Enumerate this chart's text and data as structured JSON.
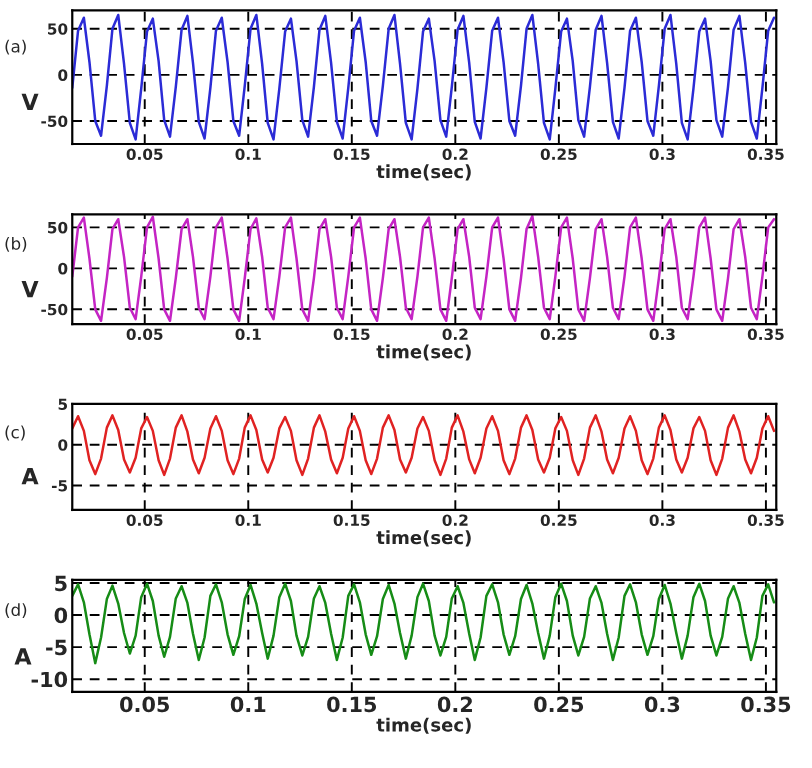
{
  "chart_data": [
    {
      "type": "line",
      "annotations": [
        "(a)"
      ],
      "xlabel": "time(sec)",
      "ylabel": "V",
      "xlim": [
        0.015,
        0.355
      ],
      "ylim": [
        -75,
        70
      ],
      "xticks": [
        0.05,
        0.1,
        0.15,
        0.2,
        0.25,
        0.3,
        0.35
      ],
      "yticks": [
        -50,
        0,
        50
      ],
      "grid": true,
      "x": [
        0.015,
        0.0178,
        0.0206,
        0.0233,
        0.0261,
        0.0289,
        0.0317,
        0.0344,
        0.0372,
        0.04,
        0.0428,
        0.0456,
        0.0483,
        0.0511,
        0.0539,
        0.0567,
        0.0594,
        0.0622,
        0.065,
        0.0678,
        0.0706,
        0.0733,
        0.0761,
        0.0789,
        0.0817,
        0.0844,
        0.0872,
        0.09,
        0.0928,
        0.0956,
        0.0983,
        0.1011,
        0.1039,
        0.1067,
        0.1094,
        0.1122,
        0.115,
        0.1178,
        0.1206,
        0.1233,
        0.1261,
        0.1289,
        0.1317,
        0.1344,
        0.1372,
        0.14,
        0.1428,
        0.1456,
        0.1483,
        0.1511,
        0.1539,
        0.1567,
        0.1594,
        0.1622,
        0.165,
        0.1678,
        0.1706,
        0.1733,
        0.1761,
        0.1789,
        0.1817,
        0.1844,
        0.1872,
        0.19,
        0.1928,
        0.1956,
        0.1983,
        0.2011,
        0.2039,
        0.2067,
        0.2094,
        0.2122,
        0.215,
        0.2178,
        0.2206,
        0.2233,
        0.2261,
        0.2289,
        0.2317,
        0.2344,
        0.2372,
        0.24,
        0.2428,
        0.2456,
        0.2483,
        0.2511,
        0.2539,
        0.2567,
        0.2594,
        0.2622,
        0.265,
        0.2678,
        0.2706,
        0.2733,
        0.2761,
        0.2789,
        0.2817,
        0.2844,
        0.2872,
        0.29,
        0.2928,
        0.2956,
        0.2983,
        0.3011,
        0.3039,
        0.3067,
        0.3094,
        0.3122,
        0.315,
        0.3178,
        0.3206,
        0.3233,
        0.3261,
        0.3289,
        0.3317,
        0.3344,
        0.3372,
        0.34,
        0.3428,
        0.3456,
        0.3483,
        0.3511,
        0.3539
      ],
      "series": [
        {
          "color": "#2b2bd6",
          "values": [
            -14,
            48,
            62,
            14,
            -50,
            -66,
            -12,
            50,
            65,
            12,
            -52,
            -70,
            -15,
            47,
            61,
            15,
            -49,
            -67,
            -13,
            49,
            64,
            13,
            -51,
            -69,
            -14,
            48,
            62,
            14,
            -50,
            -66,
            -12,
            50,
            65,
            12,
            -52,
            -70,
            -15,
            47,
            61,
            15,
            -49,
            -67,
            -13,
            49,
            64,
            13,
            -51,
            -69,
            -14,
            48,
            62,
            14,
            -50,
            -66,
            -12,
            50,
            65,
            12,
            -52,
            -70,
            -15,
            47,
            61,
            15,
            -49,
            -67,
            -13,
            49,
            64,
            13,
            -51,
            -69,
            -14,
            48,
            62,
            14,
            -50,
            -66,
            -12,
            50,
            65,
            12,
            -52,
            -70,
            -15,
            47,
            61,
            15,
            -49,
            -67,
            -13,
            49,
            64,
            13,
            -51,
            -69,
            -14,
            48,
            62,
            14,
            -50,
            -66,
            -12,
            50,
            65,
            12,
            -52,
            -70,
            -15,
            47,
            61,
            15,
            -49,
            -67,
            -13,
            49,
            64,
            13,
            -51,
            -69,
            -14,
            48,
            62
          ]
        }
      ]
    },
    {
      "type": "line",
      "annotations": [
        "(b)"
      ],
      "xlabel": "time(sec)",
      "ylabel": "V",
      "xlim": [
        0.015,
        0.355
      ],
      "ylim": [
        -68,
        66
      ],
      "xticks": [
        0.05,
        0.1,
        0.15,
        0.2,
        0.25,
        0.3,
        0.35
      ],
      "yticks": [
        -50,
        0,
        50
      ],
      "grid": true,
      "x": [
        0.015,
        0.0178,
        0.0206,
        0.0233,
        0.0261,
        0.0289,
        0.0317,
        0.0344,
        0.0372,
        0.04,
        0.0428,
        0.0456,
        0.0483,
        0.0511,
        0.0539,
        0.0567,
        0.0594,
        0.0622,
        0.065,
        0.0678,
        0.0706,
        0.0733,
        0.0761,
        0.0789,
        0.0817,
        0.0844,
        0.0872,
        0.09,
        0.0928,
        0.0956,
        0.0983,
        0.1011,
        0.1039,
        0.1067,
        0.1094,
        0.1122,
        0.115,
        0.1178,
        0.1206,
        0.1233,
        0.1261,
        0.1289,
        0.1317,
        0.1344,
        0.1372,
        0.14,
        0.1428,
        0.1456,
        0.1483,
        0.1511,
        0.1539,
        0.1567,
        0.1594,
        0.1622,
        0.165,
        0.1678,
        0.1706,
        0.1733,
        0.1761,
        0.1789,
        0.1817,
        0.1844,
        0.1872,
        0.19,
        0.1928,
        0.1956,
        0.1983,
        0.2011,
        0.2039,
        0.2067,
        0.2094,
        0.2122,
        0.215,
        0.2178,
        0.2206,
        0.2233,
        0.2261,
        0.2289,
        0.2317,
        0.2344,
        0.2372,
        0.24,
        0.2428,
        0.2456,
        0.2483,
        0.2511,
        0.2539,
        0.2567,
        0.2594,
        0.2622,
        0.265,
        0.2678,
        0.2706,
        0.2733,
        0.2761,
        0.2789,
        0.2817,
        0.2844,
        0.2872,
        0.29,
        0.2928,
        0.2956,
        0.2983,
        0.3011,
        0.3039,
        0.3067,
        0.3094,
        0.3122,
        0.315,
        0.3178,
        0.3206,
        0.3233,
        0.3261,
        0.3289,
        0.3317,
        0.3344,
        0.3372,
        0.34,
        0.3428,
        0.3456,
        0.3483,
        0.3511,
        0.3539
      ],
      "series": [
        {
          "color": "#c424c4",
          "values": [
            -10,
            50,
            62,
            12,
            -50,
            -64,
            -12,
            48,
            60,
            14,
            -48,
            -62,
            -10,
            50,
            63,
            12,
            -50,
            -64,
            -12,
            48,
            60,
            14,
            -48,
            -62,
            -10,
            50,
            62,
            12,
            -50,
            -64,
            -12,
            48,
            61,
            14,
            -48,
            -62,
            -10,
            50,
            62,
            12,
            -50,
            -64,
            -12,
            48,
            60,
            14,
            -48,
            -62,
            -10,
            50,
            62,
            12,
            -50,
            -64,
            -12,
            48,
            60,
            14,
            -48,
            -62,
            -10,
            50,
            62,
            12,
            -50,
            -64,
            -12,
            48,
            60,
            14,
            -48,
            -62,
            -10,
            50,
            62,
            12,
            -50,
            -64,
            -12,
            48,
            64,
            14,
            -48,
            -62,
            -10,
            50,
            62,
            12,
            -50,
            -64,
            -12,
            48,
            60,
            14,
            -48,
            -62,
            -10,
            50,
            62,
            12,
            -50,
            -64,
            -12,
            48,
            60,
            14,
            -48,
            -62,
            -10,
            50,
            62,
            12,
            -50,
            -64,
            -12,
            48,
            60,
            14,
            -48,
            -62,
            -10,
            50,
            60
          ]
        }
      ]
    },
    {
      "type": "line",
      "annotations": [
        "(c)"
      ],
      "xlabel": "time(sec)",
      "ylabel": "A",
      "xlim": [
        0.015,
        0.355
      ],
      "ylim": [
        -8,
        5
      ],
      "xticks": [
        0.05,
        0.1,
        0.15,
        0.2,
        0.25,
        0.3,
        0.35
      ],
      "yticks": [
        -5,
        0,
        5
      ],
      "grid": true,
      "x": [
        0.015,
        0.0178,
        0.0206,
        0.0233,
        0.0261,
        0.0289,
        0.0317,
        0.0344,
        0.0372,
        0.04,
        0.0428,
        0.0456,
        0.0483,
        0.0511,
        0.0539,
        0.0567,
        0.0594,
        0.0622,
        0.065,
        0.0678,
        0.0706,
        0.0733,
        0.0761,
        0.0789,
        0.0817,
        0.0844,
        0.0872,
        0.09,
        0.0928,
        0.0956,
        0.0983,
        0.1011,
        0.1039,
        0.1067,
        0.1094,
        0.1122,
        0.115,
        0.1178,
        0.1206,
        0.1233,
        0.1261,
        0.1289,
        0.1317,
        0.1344,
        0.1372,
        0.14,
        0.1428,
        0.1456,
        0.1483,
        0.1511,
        0.1539,
        0.1567,
        0.1594,
        0.1622,
        0.165,
        0.1678,
        0.1706,
        0.1733,
        0.1761,
        0.1789,
        0.1817,
        0.1844,
        0.1872,
        0.19,
        0.1928,
        0.1956,
        0.1983,
        0.2011,
        0.2039,
        0.2067,
        0.2094,
        0.2122,
        0.215,
        0.2178,
        0.2206,
        0.2233,
        0.2261,
        0.2289,
        0.2317,
        0.2344,
        0.2372,
        0.24,
        0.2428,
        0.2456,
        0.2483,
        0.2511,
        0.2539,
        0.2567,
        0.2594,
        0.2622,
        0.265,
        0.2678,
        0.2706,
        0.2733,
        0.2761,
        0.2789,
        0.2817,
        0.2844,
        0.2872,
        0.29,
        0.2928,
        0.2956,
        0.2983,
        0.3011,
        0.3039,
        0.3067,
        0.3094,
        0.3122,
        0.315,
        0.3178,
        0.3206,
        0.3233,
        0.3261,
        0.3289,
        0.3317,
        0.3344,
        0.3372,
        0.34,
        0.3428,
        0.3456,
        0.3483,
        0.3511,
        0.3539
      ],
      "series": [
        {
          "color": "#e02222",
          "values": [
            2,
            3.5,
            1.7,
            -1.9,
            -3.6,
            -1.7,
            2.1,
            3.6,
            1.8,
            -1.8,
            -3.4,
            -1.6,
            2,
            3.4,
            1.7,
            -1.9,
            -3.7,
            -1.7,
            2.1,
            3.6,
            1.6,
            -1.8,
            -3.5,
            -1.6,
            2,
            3.5,
            1.7,
            -1.9,
            -3.6,
            -1.7,
            2.1,
            3.6,
            1.8,
            -1.8,
            -3.4,
            -1.6,
            2,
            3.4,
            1.7,
            -1.9,
            -3.7,
            -1.7,
            2.1,
            3.6,
            1.6,
            -1.8,
            -3.5,
            -1.6,
            2,
            3.5,
            1.7,
            -1.9,
            -3.6,
            -1.7,
            2.1,
            3.6,
            1.8,
            -1.8,
            -3.4,
            -1.6,
            2,
            3.4,
            1.7,
            -1.9,
            -3.7,
            -1.7,
            2.1,
            3.6,
            1.6,
            -1.8,
            -3.5,
            -1.6,
            2,
            3.5,
            1.7,
            -1.9,
            -3.6,
            -1.7,
            2.1,
            3.6,
            1.8,
            -1.8,
            -3.4,
            -1.6,
            2,
            3.4,
            1.7,
            -1.9,
            -3.7,
            -1.7,
            2.1,
            3.6,
            1.6,
            -1.8,
            -3.5,
            -1.6,
            2,
            3.5,
            1.7,
            -1.9,
            -3.6,
            -1.7,
            2.1,
            3.6,
            1.8,
            -1.8,
            -3.4,
            -1.6,
            2,
            3.4,
            1.7,
            -1.9,
            -3.7,
            -1.7,
            2.1,
            3.6,
            1.6,
            -1.8,
            -3.5,
            -1.6,
            2,
            3.5,
            1.7
          ]
        }
      ]
    },
    {
      "type": "line",
      "annotations": [
        "(d)"
      ],
      "xlabel": "time(sec)",
      "ylabel": "A",
      "xlim": [
        0.015,
        0.355
      ],
      "ylim": [
        -12,
        5.5
      ],
      "xticks": [
        0.05,
        0.1,
        0.15,
        0.2,
        0.25,
        0.3,
        0.35
      ],
      "yticks": [
        -10,
        -5,
        0,
        5
      ],
      "grid": true,
      "x": [
        0.015,
        0.0178,
        0.0206,
        0.0233,
        0.0261,
        0.0289,
        0.0317,
        0.0344,
        0.0372,
        0.04,
        0.0428,
        0.0456,
        0.0483,
        0.0511,
        0.0539,
        0.0567,
        0.0594,
        0.0622,
        0.065,
        0.0678,
        0.0706,
        0.0733,
        0.0761,
        0.0789,
        0.0817,
        0.0844,
        0.0872,
        0.09,
        0.0928,
        0.0956,
        0.0983,
        0.1011,
        0.1039,
        0.1067,
        0.1094,
        0.1122,
        0.115,
        0.1178,
        0.1206,
        0.1233,
        0.1261,
        0.1289,
        0.1317,
        0.1344,
        0.1372,
        0.14,
        0.1428,
        0.1456,
        0.1483,
        0.1511,
        0.1539,
        0.1567,
        0.1594,
        0.1622,
        0.165,
        0.1678,
        0.1706,
        0.1733,
        0.1761,
        0.1789,
        0.1817,
        0.1844,
        0.1872,
        0.19,
        0.1928,
        0.1956,
        0.1983,
        0.2011,
        0.2039,
        0.2067,
        0.2094,
        0.2122,
        0.215,
        0.2178,
        0.2206,
        0.2233,
        0.2261,
        0.2289,
        0.2317,
        0.2344,
        0.2372,
        0.24,
        0.2428,
        0.2456,
        0.2483,
        0.2511,
        0.2539,
        0.2567,
        0.2594,
        0.2622,
        0.265,
        0.2678,
        0.2706,
        0.2733,
        0.2761,
        0.2789,
        0.2817,
        0.2844,
        0.2872,
        0.29,
        0.2928,
        0.2956,
        0.2983,
        0.3011,
        0.3039,
        0.3067,
        0.3094,
        0.3122,
        0.315,
        0.3178,
        0.3206,
        0.3233,
        0.3261,
        0.3289,
        0.3317,
        0.3344,
        0.3372,
        0.34,
        0.3428,
        0.3456,
        0.3483,
        0.3511,
        0.3539
      ],
      "series": [
        {
          "color": "#168c16",
          "values": [
            3,
            4.8,
            2,
            -3,
            -7.5,
            -3.5,
            2.5,
            4.6,
            1.8,
            -2.8,
            -6,
            -3.2,
            2.8,
            4.9,
            2.2,
            -3.2,
            -6.5,
            -3.4,
            2.6,
            4.5,
            1.9,
            -2.9,
            -7,
            -3.5,
            3,
            4.8,
            2,
            -3,
            -6.2,
            -3.3,
            2.5,
            4.7,
            1.8,
            -2.8,
            -6.8,
            -3.2,
            2.8,
            4.9,
            2.2,
            -3.2,
            -6.3,
            -3.4,
            2.6,
            4.5,
            1.9,
            -2.9,
            -7,
            -3.5,
            3,
            4.8,
            2,
            -3,
            -6.2,
            -3.3,
            2.5,
            4.7,
            1.8,
            -2.8,
            -6.8,
            -3.2,
            2.8,
            4.9,
            2.2,
            -3.2,
            -6.3,
            -3.4,
            2.6,
            4.5,
            1.9,
            -2.9,
            -7,
            -3.5,
            3,
            4.8,
            2,
            -3,
            -6.2,
            -3.3,
            2.5,
            4.7,
            1.8,
            -2.8,
            -6.8,
            -3.2,
            2.8,
            4.9,
            2.2,
            -3.2,
            -6.3,
            -3.4,
            2.6,
            4.5,
            1.9,
            -2.9,
            -7,
            -3.5,
            3,
            4.8,
            2,
            -3,
            -6.2,
            -3.3,
            2.5,
            4.7,
            1.8,
            -2.8,
            -6.8,
            -3.2,
            2.8,
            4.9,
            2.2,
            -3.2,
            -6.3,
            -3.4,
            2.6,
            4.5,
            1.9,
            -2.9,
            -7,
            -3.5,
            3,
            4.8,
            2
          ]
        }
      ]
    }
  ]
}
